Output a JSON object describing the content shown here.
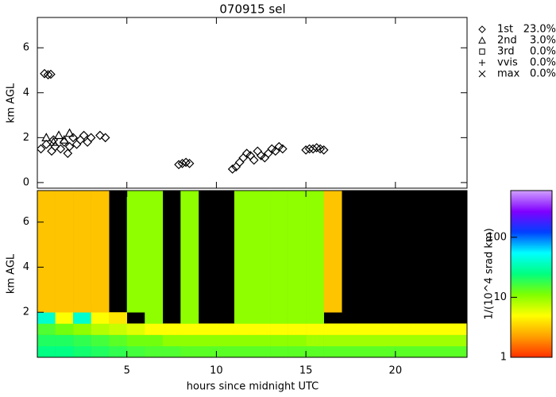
{
  "chart_data": [
    {
      "type": "scatter",
      "title": "070915 sel",
      "ylabel": "km AGL",
      "xlim": [
        0,
        24
      ],
      "ylim": [
        -0.25,
        7.35
      ],
      "xticks": [
        5,
        10,
        15,
        20
      ],
      "yticks": [
        0,
        2,
        4,
        6
      ],
      "series": [
        {
          "name": "1st",
          "share": {
            "value": 23.0,
            "label": "23.0%"
          },
          "marker": "diamond",
          "color": "#000000",
          "x": [
            0.4,
            0.6,
            0.75,
            0.2,
            0.5,
            0.8,
            1.0,
            1.3,
            1.5,
            1.8,
            2.0,
            2.2,
            2.4,
            2.6,
            2.8,
            3.0,
            0.9,
            1.7,
            3.5,
            3.8,
            7.9,
            8.1,
            8.3,
            8.5,
            10.9,
            11.1,
            11.3,
            11.5,
            11.7,
            11.9,
            12.1,
            12.3,
            12.5,
            12.7,
            12.9,
            13.1,
            13.3,
            13.5,
            13.7,
            15.0,
            15.2,
            15.4,
            15.6,
            15.8,
            16.0
          ],
          "y": [
            4.85,
            4.8,
            4.82,
            1.5,
            1.7,
            1.4,
            1.6,
            1.5,
            1.8,
            1.6,
            2.0,
            1.7,
            1.9,
            2.1,
            1.8,
            2.0,
            1.9,
            1.3,
            2.1,
            2.0,
            0.8,
            0.85,
            0.9,
            0.85,
            0.6,
            0.7,
            0.9,
            1.1,
            1.3,
            1.2,
            1.0,
            1.4,
            1.2,
            1.1,
            1.3,
            1.5,
            1.4,
            1.6,
            1.5,
            1.45,
            1.5,
            1.5,
            1.55,
            1.5,
            1.45
          ]
        },
        {
          "name": "2nd",
          "share": {
            "value": 3.0,
            "label": "3.0%"
          },
          "marker": "triangle",
          "color": "#000000",
          "x": [
            0.5,
            0.9,
            1.2,
            1.5,
            1.8
          ],
          "y": [
            2.0,
            1.8,
            2.1,
            1.9,
            2.2
          ]
        },
        {
          "name": "3rd",
          "share": {
            "value": 0.0,
            "label": "0.0%"
          },
          "marker": "square",
          "color": "#000000",
          "x": [],
          "y": []
        },
        {
          "name": "vvis",
          "share": {
            "value": 0.0,
            "label": "0.0%"
          },
          "marker": "plus",
          "color": "#000000",
          "x": [],
          "y": []
        },
        {
          "name": "max",
          "share": {
            "value": 0.0,
            "label": "0.0%"
          },
          "marker": "cross",
          "color": "#000000",
          "x": [],
          "y": []
        }
      ]
    },
    {
      "type": "heatmap",
      "xlabel": "hours since midnight UTC",
      "ylabel": "km AGL",
      "xlim": [
        0,
        24
      ],
      "ylim": [
        0,
        7.4
      ],
      "xticks": [
        5,
        10,
        15,
        20
      ],
      "yticks": [
        2,
        4,
        6
      ],
      "x_edges": [
        0,
        1,
        2,
        3,
        4,
        5,
        6,
        7,
        8,
        9,
        10,
        11,
        12,
        13,
        14,
        15,
        16,
        17,
        18,
        19,
        20,
        21,
        22,
        23,
        24
      ],
      "y_edges": [
        0,
        0.5,
        1,
        1.5,
        2,
        7.4
      ],
      "values": [
        [
          25,
          25,
          22,
          20,
          18,
          16,
          15,
          15,
          14,
          14,
          14,
          14,
          14,
          14,
          14,
          14,
          14,
          14,
          14,
          14,
          14,
          14,
          14,
          14
        ],
        [
          20,
          20,
          18,
          16,
          14,
          12,
          12,
          10,
          10,
          10,
          10,
          10,
          10,
          10,
          10,
          9,
          9,
          9,
          9,
          9,
          9,
          9,
          9,
          9
        ],
        [
          15,
          12,
          10,
          8,
          7,
          6,
          5,
          5,
          5,
          5,
          5,
          5,
          5,
          5,
          5,
          5,
          5,
          5,
          5,
          5,
          5,
          5,
          5,
          5
        ],
        [
          40,
          5,
          40,
          5,
          4,
          null,
          10,
          null,
          10,
          null,
          null,
          10,
          10,
          10,
          10,
          10,
          null,
          null,
          null,
          null,
          null,
          null,
          null,
          null
        ],
        [
          3,
          3,
          3,
          3,
          null,
          10,
          10,
          null,
          10,
          null,
          null,
          10,
          10,
          10,
          10,
          10,
          3,
          null,
          null,
          null,
          null,
          null,
          null,
          null
        ]
      ],
      "colorbar": {
        "label": "1/(10^4 srad km)",
        "log": true,
        "clim": [
          1,
          600
        ],
        "ticks": [
          1,
          10,
          100
        ],
        "colors": [
          "#ff3000",
          "#ffa000",
          "#ffff00",
          "#80ff00",
          "#00ff80",
          "#00ffff",
          "#0040ff",
          "#8000ff",
          "#d0a0ff"
        ]
      }
    }
  ]
}
